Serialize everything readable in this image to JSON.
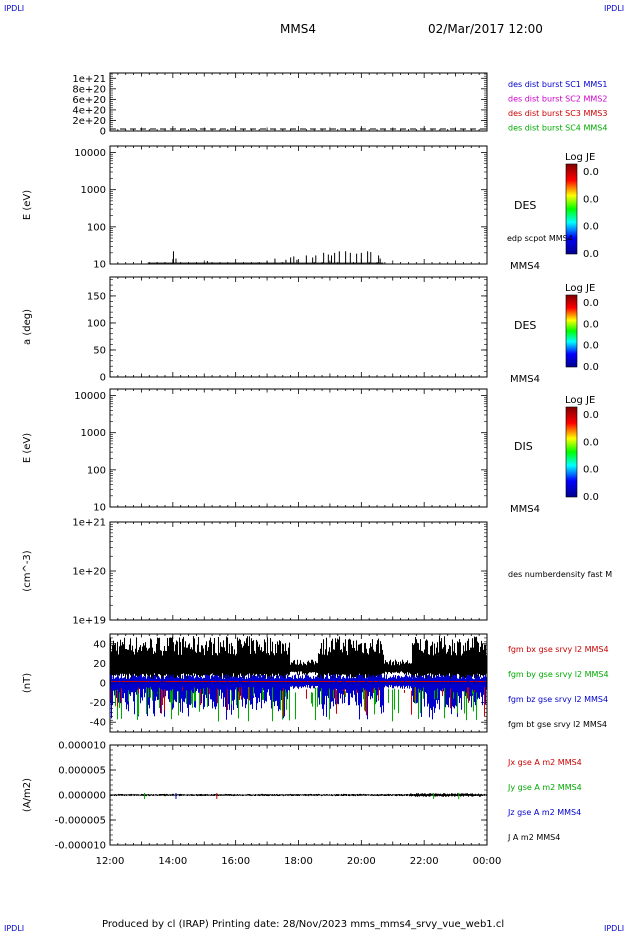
{
  "header": {
    "corner_label": "IPDLI",
    "spacecraft": "MMS4",
    "datetime": "02/Mar/2017 12:00"
  },
  "footer": {
    "text": "Produced by cl (IRAP)   Printing date: 28/Nov/2023   mms_mms4_srvy_vue_web1.cl"
  },
  "colors": {
    "mms1": "#0000cc",
    "mms2": "#cc00cc",
    "mms3": "#cc0000",
    "mms4": "#00aa00",
    "bx": "#cc0000",
    "by": "#00aa00",
    "bz": "#0000cc",
    "bt": "#000000"
  },
  "chart_data": [
    {
      "id": "p1",
      "type": "line",
      "ylabel": "",
      "y_ticks": [
        "1e+21",
        "8e+20",
        "6e+20",
        "4e+20",
        "2e+20",
        "0"
      ],
      "y_tick_values": [
        1e+21,
        8e+20,
        6e+20,
        4e+20,
        2e+20,
        0
      ],
      "ylim": [
        0,
        1.1e+21
      ],
      "series": [
        {
          "name": "des dist burst SC1 MMS1",
          "color": "#0000cc"
        },
        {
          "name": "des dist burst SC2 MMS2",
          "color": "#cc00cc"
        },
        {
          "name": "des dist burst SC3 MMS3",
          "color": "#cc0000"
        },
        {
          "name": "des dist burst SC4 MMS4",
          "color": "#00aa00"
        }
      ],
      "baseline_value": 0
    },
    {
      "id": "p2",
      "type": "heatmap",
      "ylabel": "E (eV)",
      "y_ticks": [
        "10000",
        "1000",
        "100",
        "10"
      ],
      "y_tick_values": [
        10000,
        1000,
        100,
        10
      ],
      "yscale": "log",
      "ylim": [
        10,
        15000
      ],
      "label": "DES",
      "overlay_label": "edp scpot MMS4",
      "spacecraft_label": "MMS4",
      "colorbar": {
        "title": "Log JE",
        "ticks": [
          "0.0",
          "0.0",
          "0.0",
          "0.0"
        ]
      },
      "scpot_spikes": [
        {
          "t": 2.02,
          "v": 22
        },
        {
          "t": 2.1,
          "v": 14
        },
        {
          "t": 3.1,
          "v": 12
        },
        {
          "t": 4.7,
          "v": 11
        },
        {
          "t": 5.0,
          "v": 12
        },
        {
          "t": 5.25,
          "v": 14
        },
        {
          "t": 5.45,
          "v": 11
        },
        {
          "t": 5.6,
          "v": 13
        },
        {
          "t": 5.75,
          "v": 15
        },
        {
          "t": 5.85,
          "v": 16
        },
        {
          "t": 5.95,
          "v": 13
        },
        {
          "t": 6.25,
          "v": 17
        },
        {
          "t": 6.45,
          "v": 15
        },
        {
          "t": 6.55,
          "v": 17
        },
        {
          "t": 6.8,
          "v": 20
        },
        {
          "t": 6.95,
          "v": 18
        },
        {
          "t": 7.05,
          "v": 17
        },
        {
          "t": 7.15,
          "v": 20
        },
        {
          "t": 7.3,
          "v": 22
        },
        {
          "t": 7.5,
          "v": 22
        },
        {
          "t": 7.65,
          "v": 20
        },
        {
          "t": 7.85,
          "v": 19
        },
        {
          "t": 8.0,
          "v": 20
        },
        {
          "t": 8.2,
          "v": 22
        },
        {
          "t": 8.3,
          "v": 21
        },
        {
          "t": 8.55,
          "v": 17
        },
        {
          "t": 8.6,
          "v": 14
        }
      ]
    },
    {
      "id": "p3",
      "type": "heatmap",
      "ylabel": "a (deg)",
      "y_ticks": [
        "150",
        "100",
        "50",
        "0"
      ],
      "y_tick_values": [
        150,
        100,
        50,
        0
      ],
      "ylim": [
        0,
        185
      ],
      "label": "DES",
      "spacecraft_label": "MMS4",
      "colorbar": {
        "title": "Log JE",
        "ticks": [
          "0.0",
          "0.0",
          "0.0",
          "0.0"
        ]
      }
    },
    {
      "id": "p4",
      "type": "heatmap",
      "ylabel": "E (eV)",
      "y_ticks": [
        "10000",
        "1000",
        "100",
        "10"
      ],
      "y_tick_values": [
        10000,
        1000,
        100,
        10
      ],
      "yscale": "log",
      "ylim": [
        10,
        15000
      ],
      "label": "DIS",
      "spacecraft_label": "MMS4",
      "colorbar": {
        "title": "Log JE",
        "ticks": [
          "0.0",
          "0.0",
          "0.0",
          "0.0"
        ]
      }
    },
    {
      "id": "p5",
      "type": "line",
      "ylabel": "(cm^-3)",
      "y_ticks": [
        "1e+21",
        "1e+20",
        "1e+19"
      ],
      "y_tick_values": [
        1e+21,
        1e+20,
        1e+19
      ],
      "yscale": "log",
      "ylim": [
        1e+19,
        1e+21
      ],
      "series": [
        {
          "name": "des numberdensity fast M",
          "color": "#000000"
        }
      ]
    },
    {
      "id": "p6",
      "type": "line",
      "ylabel": "(nT)",
      "y_ticks": [
        "40",
        "20",
        "0",
        "-20",
        "-40"
      ],
      "y_tick_values": [
        40,
        20,
        0,
        -20,
        -40
      ],
      "ylim": [
        -50,
        50
      ],
      "series": [
        {
          "name": "fgm bx gse srvy l2 MMS4",
          "color": "#cc0000"
        },
        {
          "name": "fgm by gse srvy l2 MMS4",
          "color": "#00aa00"
        },
        {
          "name": "fgm bz gse srvy l2 MMS4",
          "color": "#0000cc"
        },
        {
          "name": "fgm bt gse srvy l2 MMS4",
          "color": "#000000"
        }
      ]
    },
    {
      "id": "p7",
      "type": "line",
      "ylabel": "(A/m2)",
      "y_ticks": [
        "0.000010",
        "0.000005",
        "0.000000",
        "-0.000005",
        "-0.000010"
      ],
      "y_tick_values": [
        1e-05,
        5e-06,
        0,
        -5e-06,
        -1e-05
      ],
      "ylim": [
        -1e-05,
        1e-05
      ],
      "series": [
        {
          "name": "Jx gse A m2 MMS4",
          "color": "#cc0000"
        },
        {
          "name": "Jy gse A m2 MMS4",
          "color": "#00aa00"
        },
        {
          "name": "Jz gse A m2 MMS4",
          "color": "#0000cc"
        },
        {
          "name": "J A m2 MMS4",
          "color": "#000000"
        }
      ],
      "x_ticks": [
        "12:00",
        "14:00",
        "16:00",
        "18:00",
        "20:00",
        "22:00",
        "00:00"
      ],
      "x_tick_values": [
        0,
        2,
        4,
        6,
        8,
        10,
        12
      ],
      "xlim": [
        0,
        12
      ]
    }
  ]
}
